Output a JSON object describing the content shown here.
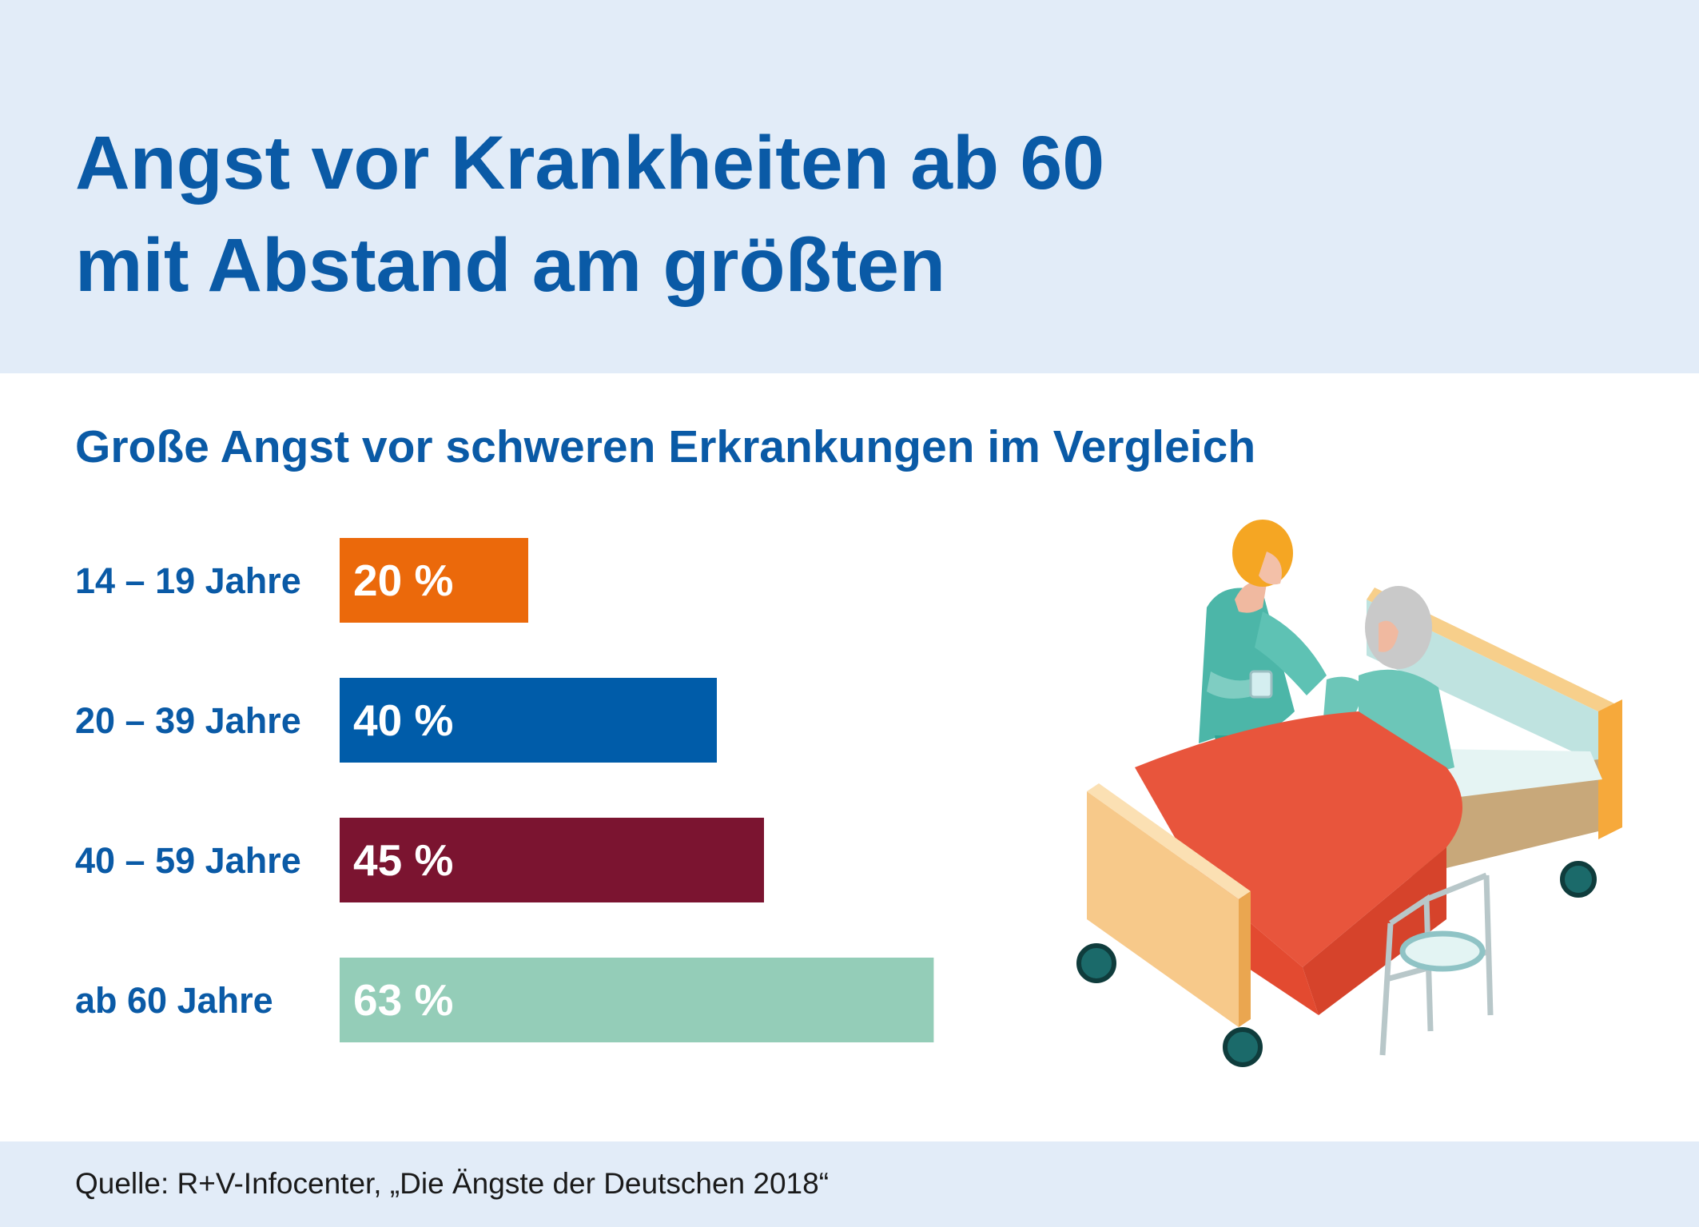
{
  "title": {
    "line1": "Angst vor Krankheiten ab 60",
    "line2": "mit Abstand am größten"
  },
  "subtitle": "Große Angst vor schweren Erkrankungen im Vergleich",
  "source": "Quelle: R+V-Infocenter, „Die Ängste der Deutschen 2018“",
  "colors": {
    "header_bg": "#e2ecf8",
    "title": "#0a5aa6",
    "bar_14_19": "#eb690b",
    "bar_20_39": "#005ca9",
    "bar_40_59": "#7b1430",
    "bar_60": "#94cdb8"
  },
  "chart_data": {
    "type": "bar",
    "orientation": "horizontal",
    "categories": [
      "14 – 19 Jahre",
      "20 – 39 Jahre",
      "40 – 59 Jahre",
      "ab 60 Jahre"
    ],
    "values": [
      20,
      40,
      45,
      63
    ],
    "value_labels": [
      "20 %",
      "40 %",
      "45 %",
      "63 %"
    ],
    "bar_colors": [
      "#eb690b",
      "#005ca9",
      "#7b1430",
      "#94cdb8"
    ],
    "title": "Große Angst vor schweren Erkrankungen im Vergleich",
    "xlabel": "",
    "ylabel": "",
    "xlim": [
      0,
      100
    ],
    "grid": false,
    "legend": "none"
  },
  "illustration": {
    "icon": "hospital-bed-caregiver-illustration"
  }
}
